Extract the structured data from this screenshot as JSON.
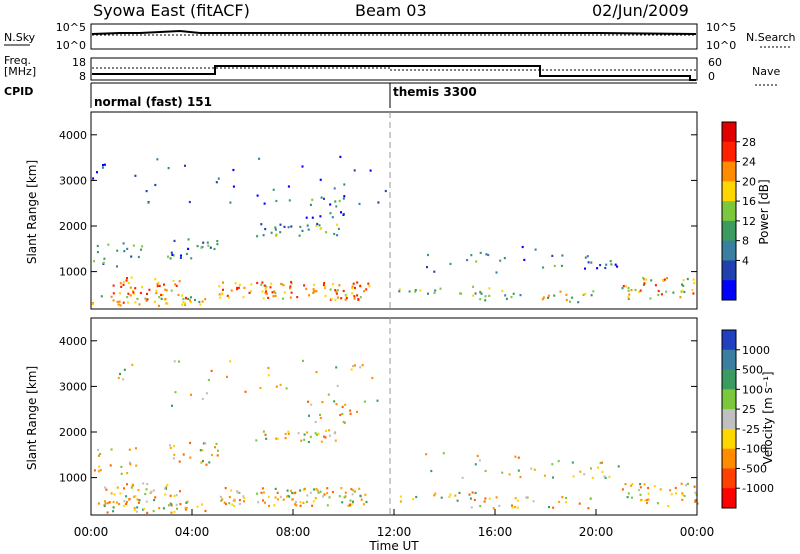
{
  "header": {
    "title": "Syowa East (fitACF)",
    "beam": "Beam 03",
    "date": "02/Jun/2009"
  },
  "top_panels": {
    "nsky_label": "N.Sky",
    "nsky_ticks": [
      "10^5",
      "10^0"
    ],
    "nsearch_label": "N.Search",
    "nsearch_ticks": [
      "10^5",
      "10^0"
    ],
    "freq_label_line1": "Freq.",
    "freq_label_line2": "[MHz]",
    "freq_ticks": [
      "18",
      "8"
    ],
    "nave_label": "Nave",
    "nave_ticks": [
      "60",
      "0"
    ],
    "cpid_label": "CPID",
    "cpid_segments": [
      {
        "label": "normal (fast) 151",
        "start_hour": 0,
        "end_hour": 12
      },
      {
        "label": "themis 3300",
        "start_hour": 12,
        "end_hour": 24
      }
    ]
  },
  "chart_data": [
    {
      "type": "heatmap",
      "name": "power",
      "ylabel": "Slant Range [km]",
      "yticks": [
        "4000",
        "3000",
        "2000",
        "1000"
      ],
      "ylim": [
        180,
        4500
      ],
      "xlim": [
        0,
        24
      ],
      "colorbar_label": "Power [dB]",
      "colorbar_ticks": [
        "28",
        "24",
        "20",
        "16",
        "12",
        "8",
        "4"
      ],
      "colorbar_colors": [
        "#0000ff",
        "#2040b0",
        "#3a7fa0",
        "#3b9b60",
        "#7cc83c",
        "#ffd700",
        "#ff8c00",
        "#ff2000",
        "#e00000"
      ]
    },
    {
      "type": "heatmap",
      "name": "velocity",
      "ylabel": "Slant Range [km]",
      "yticks": [
        "4000",
        "3000",
        "2000",
        "1000"
      ],
      "ylim": [
        180,
        4500
      ],
      "xlim": [
        0,
        24
      ],
      "xlabel": "Time UT",
      "xticks": [
        "00:00",
        "04:00",
        "08:00",
        "12:00",
        "16:00",
        "20:00",
        "00:00"
      ],
      "colorbar_label": "Velocity [m s⁻¹]",
      "colorbar_ticks": [
        "1000",
        "500",
        "100",
        "25",
        "-25",
        "-100",
        "-500",
        "-1000"
      ],
      "colorbar_colors": [
        "#2040c0",
        "#3a7fa0",
        "#3b9b60",
        "#7cc83c",
        "#c0c0c0",
        "#ffd700",
        "#ff8c00",
        "#ff4000",
        "#ff0000"
      ]
    }
  ]
}
